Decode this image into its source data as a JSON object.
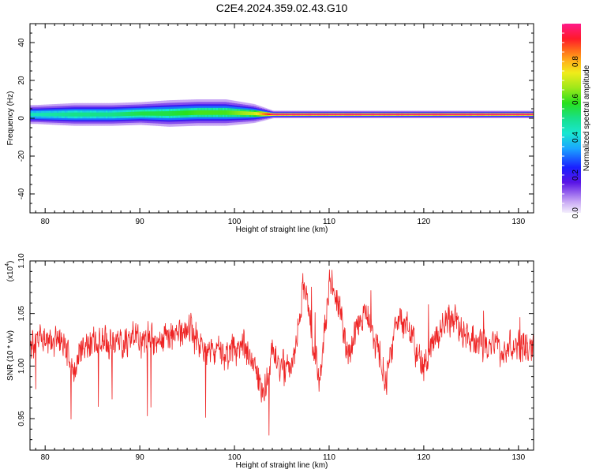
{
  "title": "C2E4.2024.359.02.43.G10",
  "colors": {
    "background": "#ffffff",
    "axis": "#000000",
    "snr_line": "#ee2222",
    "spectrogram_bg": "#ffffff"
  },
  "chart_data": [
    {
      "type": "heatmap",
      "title": "",
      "xlabel": "Height of straight line (km)",
      "ylabel": "Frequency (Hz)",
      "xlim": [
        78.4,
        131.6
      ],
      "ylim": [
        -50,
        50
      ],
      "xticks": [
        "80",
        "90",
        "100",
        "110",
        "120",
        "130"
      ],
      "yticks": [
        "-40",
        "-20",
        "0",
        "20",
        "40"
      ],
      "band_center_hz": [
        2,
        2,
        2,
        2.5,
        2.5,
        3,
        3,
        2.5,
        2,
        2,
        2,
        2
      ],
      "band_x_km": [
        79,
        83,
        87,
        90,
        93,
        96,
        99,
        102,
        104,
        110,
        120,
        131
      ],
      "band_halfwidth_hz": [
        2.5,
        3,
        3,
        3,
        3.5,
        3.5,
        3.5,
        2.5,
        1,
        1,
        1,
        1
      ],
      "band_amplitude": [
        0.45,
        0.5,
        0.5,
        0.55,
        0.55,
        0.6,
        0.6,
        0.7,
        0.98,
        0.98,
        0.98,
        0.98
      ],
      "colorbar": {
        "label": "Normalized spectral amplitude",
        "ticks": [
          "0.0",
          "0.2",
          "0.4",
          "0.6",
          "0.8"
        ],
        "range": [
          0,
          1
        ]
      }
    },
    {
      "type": "line",
      "title": "",
      "xlabel": "Height of straight line (km)",
      "ylabel": "SNR (10 * v/v)",
      "y_exponent_label": "(x10",
      "y_exponent_power": "4",
      "y_exponent_close": ")",
      "xlim": [
        78.4,
        131.6
      ],
      "ylim": [
        0.92,
        1.1
      ],
      "xticks": [
        "80",
        "90",
        "100",
        "110",
        "120",
        "130"
      ],
      "yticks": [
        "0.95",
        "1.00",
        "1.05",
        "1.10"
      ],
      "trend_x_km": [
        78.4,
        80,
        82,
        83,
        84,
        86,
        88,
        90,
        92,
        94,
        95,
        96,
        98,
        100,
        101,
        102,
        103,
        104,
        105,
        106,
        107,
        107.5,
        108,
        109,
        110,
        111,
        112,
        113,
        114,
        115,
        116,
        117,
        118,
        119,
        120,
        121,
        122,
        123,
        124,
        126,
        128,
        130,
        131.6
      ],
      "trend_snr": [
        1.02,
        1.025,
        1.02,
        0.99,
        1.02,
        1.025,
        1.02,
        1.025,
        1.025,
        1.03,
        1.035,
        1.025,
        1.01,
        1.015,
        1.02,
        1.0,
        0.975,
        1.01,
        1.0,
        0.99,
        1.06,
        1.08,
        1.04,
        0.98,
        1.08,
        1.06,
        1.01,
        1.04,
        1.05,
        1.02,
        0.99,
        1.035,
        1.04,
        1.02,
        1.0,
        1.02,
        1.04,
        1.05,
        1.03,
        1.02,
        1.015,
        1.02,
        1.02
      ],
      "noise_amplitude": 0.012,
      "sample_count": 1400
    }
  ]
}
